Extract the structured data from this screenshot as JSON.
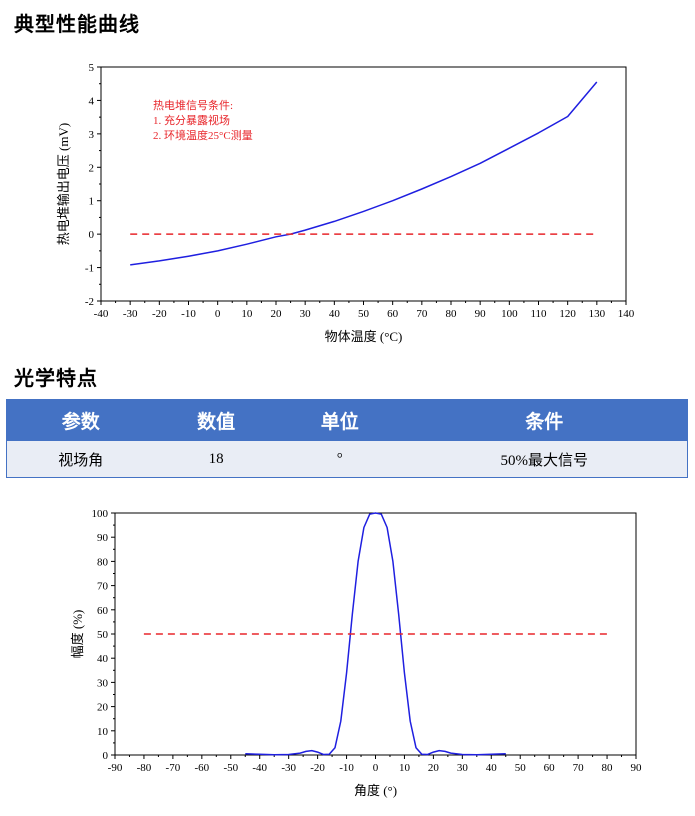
{
  "sections": {
    "performance_title": "典型性能曲线",
    "optics_title": "光学特点"
  },
  "annotation": {
    "lines": [
      "热电堆信号条件:",
      "1. 充分暴露视场",
      "2. 环境温度25°C测量"
    ]
  },
  "table": {
    "headers": [
      "参数",
      "数值",
      "单位",
      "条件"
    ],
    "rows": [
      [
        "视场角",
        "18",
        "°",
        "50%最大信号"
      ]
    ]
  },
  "chart_data": [
    {
      "type": "line",
      "xlabel": "物体温度 (°C)",
      "ylabel": "热电堆输出电压 (mV)",
      "xlim": [
        -40,
        140
      ],
      "ylim": [
        -2,
        5
      ],
      "x_ticks": [
        -40,
        -30,
        -20,
        -10,
        0,
        10,
        20,
        30,
        40,
        50,
        60,
        70,
        80,
        90,
        100,
        110,
        120,
        130,
        140
      ],
      "y_ticks": [
        -2,
        -1,
        0,
        1,
        2,
        3,
        4,
        5
      ],
      "grid": false,
      "series": [
        {
          "color": "#1f1fe0",
          "style": "solid",
          "x": [
            -30,
            -20,
            -10,
            0,
            10,
            20,
            25,
            30,
            40,
            50,
            60,
            70,
            80,
            90,
            100,
            110,
            120,
            130
          ],
          "y": [
            -0.92,
            -0.8,
            -0.66,
            -0.5,
            -0.3,
            -0.08,
            0.0,
            0.12,
            0.38,
            0.68,
            1.0,
            1.35,
            1.72,
            2.12,
            2.57,
            3.03,
            3.52,
            4.55
          ]
        },
        {
          "color": "#e8262b",
          "style": "dashed",
          "x": [
            -30,
            130
          ],
          "y": [
            0,
            0
          ]
        }
      ]
    },
    {
      "type": "line",
      "xlabel": "角度 (°)",
      "ylabel": "幅度 (%)",
      "xlim": [
        -90,
        90
      ],
      "ylim": [
        0,
        100
      ],
      "x_ticks": [
        -90,
        -80,
        -70,
        -60,
        -50,
        -40,
        -30,
        -20,
        -10,
        0,
        10,
        20,
        30,
        40,
        50,
        60,
        70,
        80,
        90
      ],
      "y_ticks": [
        0,
        10,
        20,
        30,
        40,
        50,
        60,
        70,
        80,
        90,
        100
      ],
      "grid": false,
      "series": [
        {
          "color": "#1f1fe0",
          "style": "solid",
          "x": [
            -45,
            -40,
            -35,
            -30,
            -26,
            -24,
            -22,
            -20,
            -18,
            -16,
            -14,
            -12,
            -10,
            -8,
            -6,
            -4,
            -2,
            0,
            2,
            4,
            6,
            8,
            10,
            12,
            14,
            16,
            18,
            20,
            22,
            24,
            26,
            30,
            35,
            40,
            45
          ],
          "y": [
            0.5,
            0.3,
            0.1,
            0.2,
            0.8,
            1.5,
            1.8,
            1.2,
            0.2,
            0.3,
            3,
            14,
            34,
            58,
            80,
            94,
            99.5,
            100,
            99.5,
            94,
            80,
            58,
            34,
            14,
            3,
            0.3,
            0.2,
            1.2,
            1.8,
            1.5,
            0.8,
            0.2,
            0.1,
            0.3,
            0.5
          ]
        },
        {
          "color": "#e8262b",
          "style": "dashed",
          "x": [
            -80,
            80
          ],
          "y": [
            50,
            50
          ]
        }
      ]
    }
  ]
}
